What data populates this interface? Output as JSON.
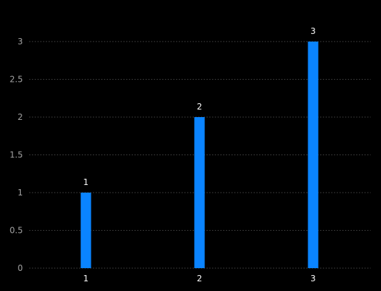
{
  "colors": {
    "background": "#000000",
    "bar": "#0a84ff",
    "gridline": "#4a4a4a",
    "tick_text": "#a3a3a3",
    "label_text": "#ffffff"
  },
  "chart_data": {
    "type": "bar",
    "categories": [
      "1",
      "2",
      "3"
    ],
    "values": [
      1,
      2,
      3
    ],
    "data_labels": [
      "1",
      "2",
      "3"
    ],
    "title": "",
    "xlabel": "",
    "ylabel": "",
    "ylim": [
      0,
      3
    ],
    "yticks": [
      "0",
      "0.5",
      "1",
      "1.5",
      "2",
      "2.5",
      "3"
    ],
    "ytick_values": [
      0,
      0.5,
      1,
      1.5,
      2,
      2.5,
      3
    ],
    "grid": true,
    "legend": "none"
  }
}
